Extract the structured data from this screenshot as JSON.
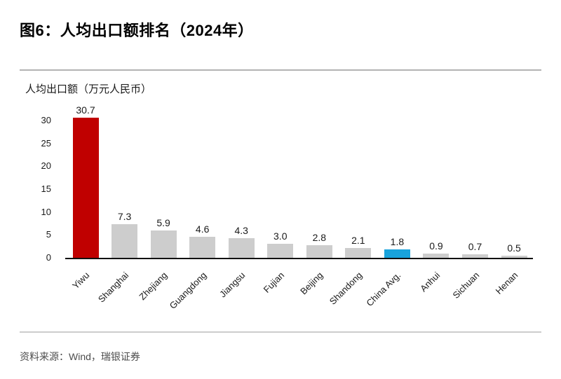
{
  "header": {
    "title": "图6：人均出口额排名（2024年）"
  },
  "chart_data": {
    "type": "bar",
    "title": "图6：人均出口额排名（2024年）",
    "axis_title": "人均出口额（万元人民币）",
    "categories": [
      "Yiwu",
      "Shanghai",
      "Zhejiang",
      "Guangdong",
      "Jiangsu",
      "Fujian",
      "Beijing",
      "Shandong",
      "China Avg.",
      "Anhui",
      "Sichuan",
      "Henan"
    ],
    "values": [
      30.7,
      7.3,
      5.9,
      4.6,
      4.3,
      3.0,
      2.8,
      2.1,
      1.8,
      0.9,
      0.7,
      0.5
    ],
    "value_labels": [
      "30.7",
      "7.3",
      "5.9",
      "4.6",
      "4.3",
      "3.0",
      "2.8",
      "2.1",
      "1.8",
      "0.9",
      "0.7",
      "0.5"
    ],
    "bar_colors": [
      "#c00000",
      "#cdcdcd",
      "#cdcdcd",
      "#cdcdcd",
      "#cdcdcd",
      "#cdcdcd",
      "#cdcdcd",
      "#cdcdcd",
      "#19a3dc",
      "#cdcdcd",
      "#cdcdcd",
      "#cdcdcd"
    ],
    "highlight_colors": {
      "yiwu_red": "#c00000",
      "china_avg_blue": "#19a3dc",
      "default_gray": "#cdcdcd"
    },
    "yticks": [
      0,
      5,
      10,
      15,
      20,
      25,
      30
    ],
    "ylim": [
      0,
      31
    ],
    "grid": false,
    "legend": "none"
  },
  "footer": {
    "source": "资料来源：Wind，瑞银证券"
  }
}
